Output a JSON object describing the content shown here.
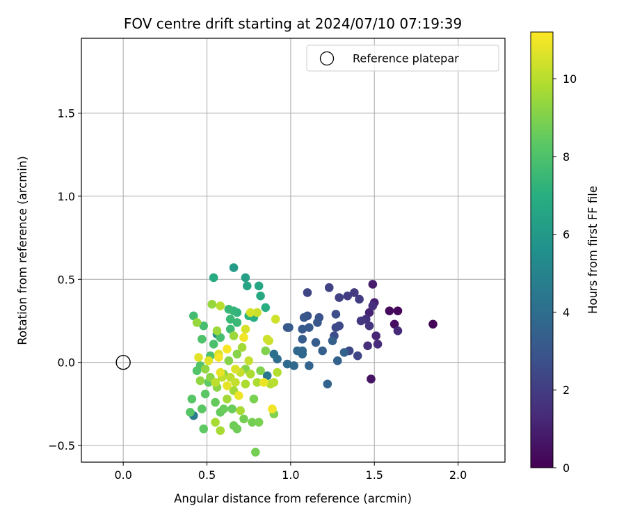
{
  "chart_data": {
    "type": "scatter",
    "title": "FOV centre drift starting at 2024/07/10 07:19:39",
    "xlabel": "Angular distance from reference (arcmin)",
    "ylabel": "Rotation from reference (arcmin)",
    "xlim": [
      -0.25,
      2.28
    ],
    "ylim": [
      -0.6,
      1.95
    ],
    "xticks": [
      0.0,
      0.5,
      1.0,
      1.5,
      2.0
    ],
    "xtick_labels": [
      "0.0",
      "0.5",
      "1.0",
      "1.5",
      "2.0"
    ],
    "yticks": [
      -0.5,
      0.0,
      0.5,
      1.0,
      1.5
    ],
    "ytick_labels": [
      "−0.5",
      "0.0",
      "0.5",
      "1.0",
      "1.5"
    ],
    "grid": true,
    "legend": {
      "placement": "top-right",
      "entries": [
        {
          "label": "Reference platepar",
          "marker": "open-circle"
        }
      ]
    },
    "reference_point": {
      "x": 0.0,
      "y": 0.0
    },
    "colorbar": {
      "label": "Hours from first FF file",
      "colormap": "viridis",
      "range": [
        0,
        11.2
      ],
      "ticks": [
        0,
        2,
        4,
        6,
        8,
        10
      ],
      "tick_labels": [
        "0",
        "2",
        "4",
        "6",
        "8",
        "10"
      ]
    },
    "points": [
      {
        "x": 1.85,
        "y": 0.23,
        "c": 0.1
      },
      {
        "x": 1.64,
        "y": 0.31,
        "c": 0.2
      },
      {
        "x": 1.59,
        "y": 0.31,
        "c": 0.3
      },
      {
        "x": 1.62,
        "y": 0.23,
        "c": 0.4
      },
      {
        "x": 1.48,
        "y": -0.1,
        "c": 0.6
      },
      {
        "x": 1.49,
        "y": 0.47,
        "c": 0.9
      },
      {
        "x": 1.5,
        "y": 0.36,
        "c": 1.0
      },
      {
        "x": 1.47,
        "y": 0.3,
        "c": 1.1
      },
      {
        "x": 1.51,
        "y": 0.16,
        "c": 1.2
      },
      {
        "x": 1.64,
        "y": 0.19,
        "c": 1.3
      },
      {
        "x": 1.52,
        "y": 0.11,
        "c": 1.4
      },
      {
        "x": 1.46,
        "y": 0.1,
        "c": 1.5
      },
      {
        "x": 1.49,
        "y": 0.34,
        "c": 1.5
      },
      {
        "x": 1.45,
        "y": 0.26,
        "c": 1.6
      },
      {
        "x": 1.47,
        "y": 0.22,
        "c": 1.7
      },
      {
        "x": 1.42,
        "y": 0.25,
        "c": 1.8
      },
      {
        "x": 1.38,
        "y": 0.42,
        "c": 1.9
      },
      {
        "x": 1.41,
        "y": 0.38,
        "c": 2.0
      },
      {
        "x": 1.34,
        "y": 0.4,
        "c": 2.0
      },
      {
        "x": 1.29,
        "y": 0.39,
        "c": 2.1
      },
      {
        "x": 1.23,
        "y": 0.45,
        "c": 2.2
      },
      {
        "x": 1.1,
        "y": 0.42,
        "c": 2.3
      },
      {
        "x": 1.4,
        "y": 0.04,
        "c": 2.3
      },
      {
        "x": 1.35,
        "y": 0.07,
        "c": 2.4
      },
      {
        "x": 1.29,
        "y": 0.22,
        "c": 2.5
      },
      {
        "x": 1.27,
        "y": 0.21,
        "c": 2.5
      },
      {
        "x": 1.26,
        "y": 0.16,
        "c": 2.6
      },
      {
        "x": 1.27,
        "y": 0.29,
        "c": 2.7
      },
      {
        "x": 1.17,
        "y": 0.27,
        "c": 2.8
      },
      {
        "x": 1.1,
        "y": 0.28,
        "c": 2.9
      },
      {
        "x": 1.08,
        "y": 0.27,
        "c": 3.0
      },
      {
        "x": 1.16,
        "y": 0.24,
        "c": 3.0
      },
      {
        "x": 1.11,
        "y": 0.21,
        "c": 3.1
      },
      {
        "x": 1.07,
        "y": 0.2,
        "c": 3.1
      },
      {
        "x": 0.99,
        "y": 0.21,
        "c": 3.2
      },
      {
        "x": 0.98,
        "y": 0.21,
        "c": 3.2
      },
      {
        "x": 1.07,
        "y": 0.14,
        "c": 3.3
      },
      {
        "x": 1.15,
        "y": 0.12,
        "c": 3.3
      },
      {
        "x": 1.19,
        "y": 0.07,
        "c": 3.4
      },
      {
        "x": 1.25,
        "y": 0.13,
        "c": 3.4
      },
      {
        "x": 1.32,
        "y": 0.06,
        "c": 3.5
      },
      {
        "x": 1.28,
        "y": 0.01,
        "c": 3.5
      },
      {
        "x": 1.22,
        "y": -0.13,
        "c": 3.6
      },
      {
        "x": 1.11,
        "y": -0.02,
        "c": 3.6
      },
      {
        "x": 1.07,
        "y": 0.07,
        "c": 3.7
      },
      {
        "x": 1.07,
        "y": 0.05,
        "c": 3.7
      },
      {
        "x": 1.04,
        "y": 0.07,
        "c": 3.8
      },
      {
        "x": 1.02,
        "y": -0.02,
        "c": 3.8
      },
      {
        "x": 0.98,
        "y": -0.01,
        "c": 3.9
      },
      {
        "x": 0.92,
        "y": 0.02,
        "c": 4.0
      },
      {
        "x": 0.9,
        "y": 0.05,
        "c": 4.1
      },
      {
        "x": 0.86,
        "y": -0.08,
        "c": 4.4
      },
      {
        "x": 0.42,
        "y": -0.32,
        "c": 4.6
      },
      {
        "x": 0.56,
        "y": 0.17,
        "c": 5.5
      },
      {
        "x": 0.66,
        "y": 0.57,
        "c": 6.1
      },
      {
        "x": 0.73,
        "y": 0.51,
        "c": 6.3
      },
      {
        "x": 0.81,
        "y": 0.46,
        "c": 6.6
      },
      {
        "x": 0.82,
        "y": 0.4,
        "c": 6.7
      },
      {
        "x": 0.74,
        "y": 0.46,
        "c": 6.5
      },
      {
        "x": 0.54,
        "y": 0.51,
        "c": 6.8
      },
      {
        "x": 0.85,
        "y": 0.33,
        "c": 7.0
      },
      {
        "x": 0.78,
        "y": 0.27,
        "c": 7.0
      },
      {
        "x": 0.75,
        "y": 0.28,
        "c": 7.1
      },
      {
        "x": 0.68,
        "y": 0.3,
        "c": 7.2
      },
      {
        "x": 0.66,
        "y": 0.31,
        "c": 7.3
      },
      {
        "x": 0.63,
        "y": 0.32,
        "c": 7.4
      },
      {
        "x": 0.64,
        "y": 0.26,
        "c": 7.5
      },
      {
        "x": 0.68,
        "y": 0.24,
        "c": 7.5
      },
      {
        "x": 0.64,
        "y": 0.2,
        "c": 7.6
      },
      {
        "x": 0.42,
        "y": 0.28,
        "c": 7.7
      },
      {
        "x": 0.48,
        "y": 0.22,
        "c": 7.8
      },
      {
        "x": 0.58,
        "y": 0.15,
        "c": 7.8
      },
      {
        "x": 0.54,
        "y": 0.11,
        "c": 7.9
      },
      {
        "x": 0.47,
        "y": 0.14,
        "c": 8.0
      },
      {
        "x": 0.52,
        "y": 0.04,
        "c": 8.0
      },
      {
        "x": 0.46,
        "y": -0.02,
        "c": 8.1
      },
      {
        "x": 0.44,
        "y": -0.05,
        "c": 8.1
      },
      {
        "x": 0.4,
        "y": -0.3,
        "c": 8.2
      },
      {
        "x": 0.41,
        "y": -0.22,
        "c": 8.2
      },
      {
        "x": 0.47,
        "y": -0.28,
        "c": 8.3
      },
      {
        "x": 0.49,
        "y": -0.19,
        "c": 8.3
      },
      {
        "x": 0.51,
        "y": -0.12,
        "c": 8.4
      },
      {
        "x": 0.48,
        "y": -0.4,
        "c": 8.4
      },
      {
        "x": 0.55,
        "y": -0.24,
        "c": 8.5
      },
      {
        "x": 0.58,
        "y": -0.3,
        "c": 8.5
      },
      {
        "x": 0.6,
        "y": -0.28,
        "c": 8.6
      },
      {
        "x": 0.65,
        "y": -0.28,
        "c": 8.6
      },
      {
        "x": 0.68,
        "y": -0.4,
        "c": 8.7
      },
      {
        "x": 0.66,
        "y": -0.38,
        "c": 8.7
      },
      {
        "x": 0.72,
        "y": -0.34,
        "c": 8.8
      },
      {
        "x": 0.77,
        "y": -0.36,
        "c": 8.8
      },
      {
        "x": 0.79,
        "y": -0.54,
        "c": 8.8
      },
      {
        "x": 0.81,
        "y": -0.36,
        "c": 8.9
      },
      {
        "x": 0.78,
        "y": -0.22,
        "c": 8.9
      },
      {
        "x": 0.9,
        "y": -0.31,
        "c": 9.0
      },
      {
        "x": 0.82,
        "y": -0.05,
        "c": 9.0
      },
      {
        "x": 0.85,
        "y": 0.07,
        "c": 9.0
      },
      {
        "x": 0.73,
        "y": -0.04,
        "c": 9.1
      },
      {
        "x": 0.68,
        "y": 0.05,
        "c": 9.1
      },
      {
        "x": 0.63,
        "y": 0.01,
        "c": 9.1
      },
      {
        "x": 0.6,
        "y": -0.07,
        "c": 9.2
      },
      {
        "x": 0.56,
        "y": -0.15,
        "c": 9.2
      },
      {
        "x": 0.52,
        "y": -0.09,
        "c": 9.2
      },
      {
        "x": 0.49,
        "y": -0.04,
        "c": 9.3
      },
      {
        "x": 0.46,
        "y": -0.11,
        "c": 9.3
      },
      {
        "x": 0.44,
        "y": 0.24,
        "c": 9.4
      },
      {
        "x": 0.53,
        "y": 0.35,
        "c": 9.4
      },
      {
        "x": 0.56,
        "y": 0.19,
        "c": 9.5
      },
      {
        "x": 0.66,
        "y": 0.16,
        "c": 9.5
      },
      {
        "x": 0.71,
        "y": 0.09,
        "c": 9.6
      },
      {
        "x": 0.66,
        "y": -0.17,
        "c": 9.6
      },
      {
        "x": 0.62,
        "y": -0.22,
        "c": 9.6
      },
      {
        "x": 0.55,
        "y": -0.36,
        "c": 9.7
      },
      {
        "x": 0.58,
        "y": -0.41,
        "c": 9.7
      },
      {
        "x": 0.7,
        "y": -0.29,
        "c": 9.7
      },
      {
        "x": 0.73,
        "y": -0.13,
        "c": 9.8
      },
      {
        "x": 0.76,
        "y": -0.07,
        "c": 9.8
      },
      {
        "x": 0.8,
        "y": -0.12,
        "c": 9.8
      },
      {
        "x": 0.88,
        "y": -0.13,
        "c": 9.9
      },
      {
        "x": 0.92,
        "y": -0.06,
        "c": 9.9
      },
      {
        "x": 0.9,
        "y": -0.12,
        "c": 10.0
      },
      {
        "x": 0.58,
        "y": 0.34,
        "c": 10.0
      },
      {
        "x": 0.55,
        "y": -0.12,
        "c": 10.1
      },
      {
        "x": 0.59,
        "y": -0.09,
        "c": 10.1
      },
      {
        "x": 0.64,
        "y": -0.09,
        "c": 10.1
      },
      {
        "x": 0.67,
        "y": -0.12,
        "c": 10.2
      },
      {
        "x": 0.7,
        "y": -0.06,
        "c": 10.2
      },
      {
        "x": 0.75,
        "y": 0.01,
        "c": 10.2
      },
      {
        "x": 0.8,
        "y": 0.3,
        "c": 10.3
      },
      {
        "x": 0.87,
        "y": 0.13,
        "c": 10.3
      },
      {
        "x": 0.91,
        "y": 0.26,
        "c": 10.4
      },
      {
        "x": 0.86,
        "y": 0.14,
        "c": 10.4
      },
      {
        "x": 0.76,
        "y": 0.3,
        "c": 10.5
      },
      {
        "x": 0.73,
        "y": 0.2,
        "c": 10.5
      },
      {
        "x": 0.67,
        "y": -0.04,
        "c": 10.6
      },
      {
        "x": 0.57,
        "y": 0.05,
        "c": 10.6
      },
      {
        "x": 0.51,
        "y": 0.01,
        "c": 10.7
      },
      {
        "x": 0.45,
        "y": 0.03,
        "c": 10.7
      },
      {
        "x": 0.58,
        "y": -0.06,
        "c": 10.8
      },
      {
        "x": 0.62,
        "y": -0.14,
        "c": 10.8
      },
      {
        "x": 0.69,
        "y": -0.2,
        "c": 10.9
      },
      {
        "x": 0.84,
        "y": -0.12,
        "c": 10.9
      },
      {
        "x": 0.89,
        "y": -0.28,
        "c": 11.0
      },
      {
        "x": 0.72,
        "y": 0.15,
        "c": 11.0
      },
      {
        "x": 0.62,
        "y": 0.08,
        "c": 11.1
      },
      {
        "x": 0.57,
        "y": 0.03,
        "c": 11.1
      }
    ]
  }
}
